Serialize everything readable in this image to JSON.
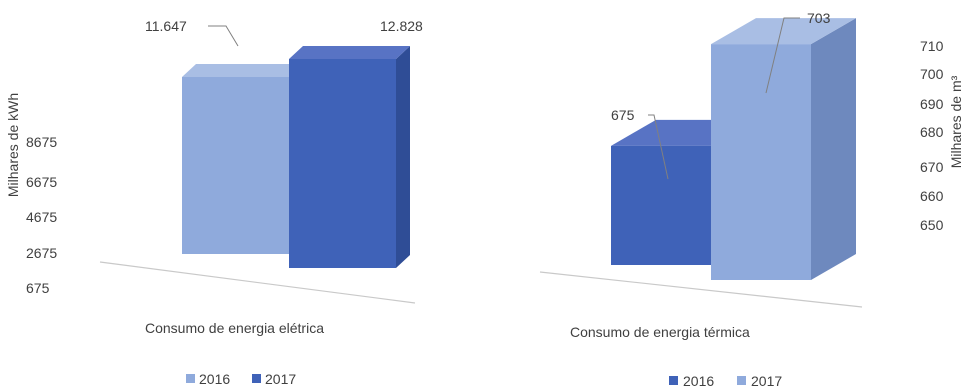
{
  "colors": {
    "light_front": "#8FAADC",
    "light_side": "#6E89BE",
    "light_top": "#A9BEE4",
    "dark_front": "#3F62B8",
    "dark_side": "#2F4D96",
    "dark_top": "#5873C4",
    "axis": "#C9C9C9",
    "leader": "#808080",
    "text": "#404040"
  },
  "chart_data": [
    {
      "type": "bar",
      "style": "3d-column",
      "categories": [
        "Consumo de energia elétrica"
      ],
      "series": [
        {
          "name": "2016",
          "values": [
            11647
          ],
          "label": "11.647",
          "color": "#8FAADC"
        },
        {
          "name": "2017",
          "values": [
            12828
          ],
          "label": "12.828",
          "color": "#3F62B8"
        }
      ],
      "xlabel": "Consumo de energia elétrica",
      "ylabel": "Milhares de kWh",
      "yticks": [
        "675",
        "2675",
        "4675",
        "6675",
        "8675"
      ],
      "ylim": [
        675,
        12828
      ],
      "axis_side": "left",
      "legend": [
        "2016",
        "2017"
      ],
      "legend_position": "bottom"
    },
    {
      "type": "bar",
      "style": "3d-column",
      "categories": [
        "Consumo de energia térmica"
      ],
      "series": [
        {
          "name": "2016",
          "values": [
            675
          ],
          "label": "675",
          "color": "#3F62B8"
        },
        {
          "name": "2017",
          "values": [
            703
          ],
          "label": "703",
          "color": "#8FAADC"
        }
      ],
      "xlabel": "Consumo de energia térmica",
      "ylabel": "Milhares de m³",
      "yticks": [
        "650",
        "660",
        "670",
        "680",
        "690",
        "700",
        "710"
      ],
      "ylim": [
        650,
        710
      ],
      "axis_side": "right",
      "legend": [
        "2016",
        "2017"
      ],
      "legend_position": "bottom"
    }
  ]
}
